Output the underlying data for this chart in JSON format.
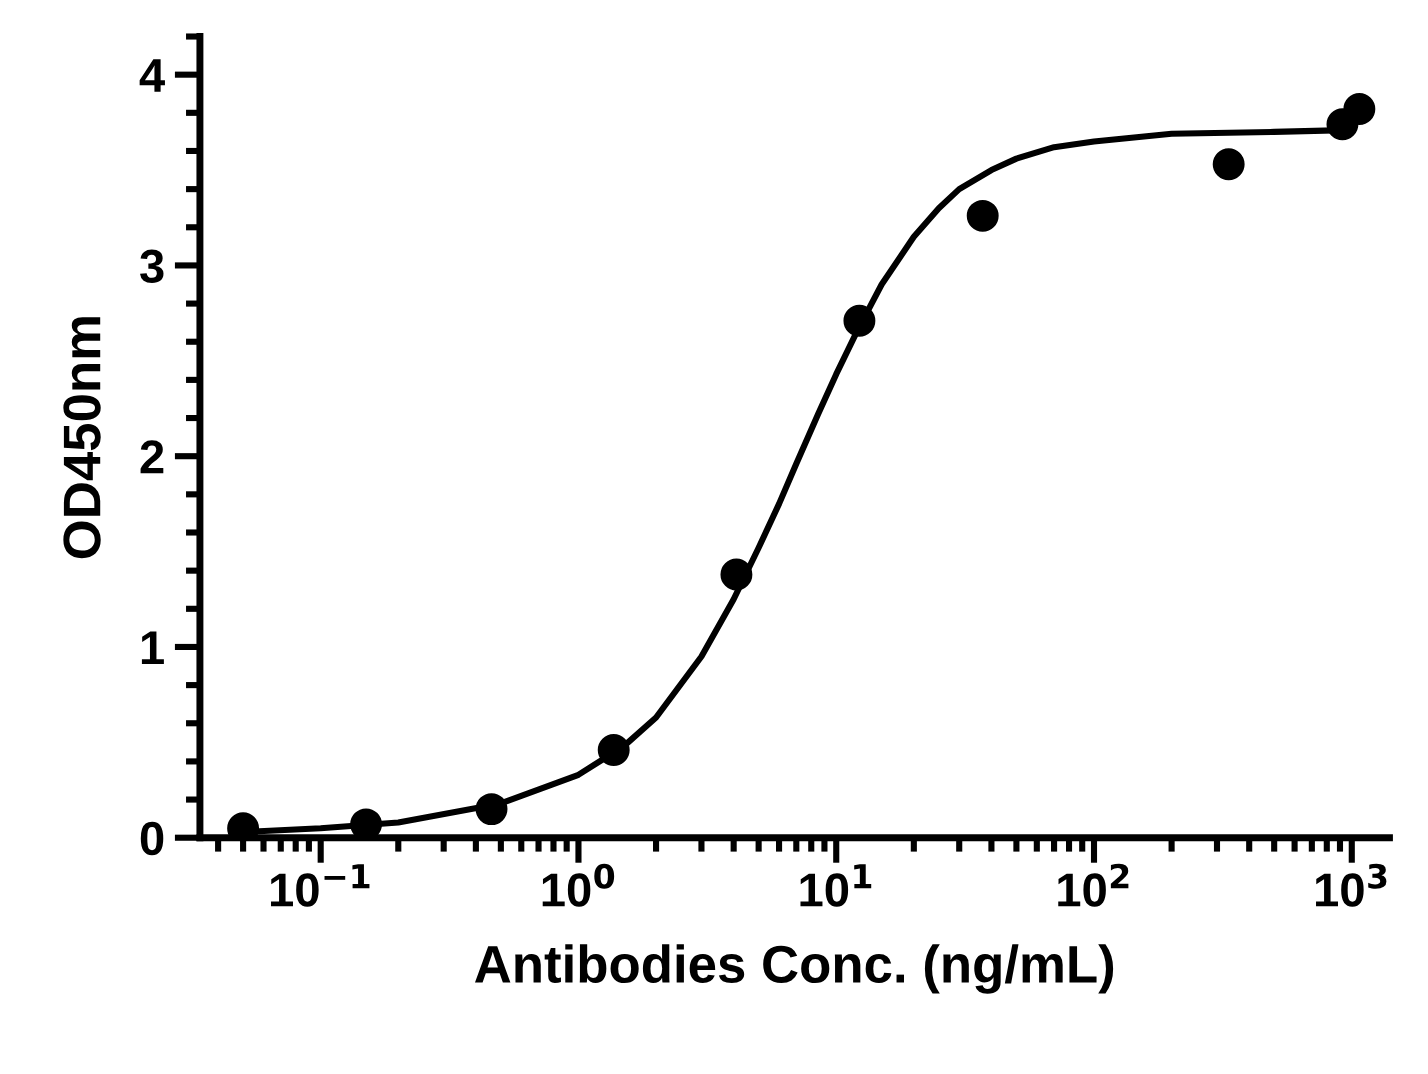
{
  "chart_data": {
    "type": "scatter",
    "xlabel": "Antibodies Conc. (ng/mL)",
    "ylabel": "OD450nm",
    "log": "x",
    "xlim": [
      0.034,
      1400
    ],
    "xticks": [
      {
        "value": 0.1,
        "label": "10$^{−1}$"
      },
      {
        "value": 1,
        "label": "10$^{0}$"
      },
      {
        "value": 10,
        "label": "10$^{1}$"
      },
      {
        "value": 100,
        "label": "10$^{2}$"
      },
      {
        "value": 1000,
        "label": "10$^{3}$"
      }
    ],
    "ylim": [
      0,
      4.2
    ],
    "yticks": [
      0,
      1,
      2,
      3,
      4
    ],
    "grid": false,
    "legend": false,
    "series": [
      {
        "marker": "circle",
        "color": "#000000",
        "x": [
          0.05,
          0.15,
          0.46,
          1.37,
          4.1,
          12.3,
          37,
          333,
          920,
          1070
        ],
        "values": [
          0.05,
          0.07,
          0.15,
          0.46,
          1.38,
          2.71,
          3.26,
          3.53,
          3.74,
          3.82
        ]
      },
      {
        "type": "line",
        "marker": "none",
        "color": "#000000",
        "line_style": "solid",
        "x": [
          0.05,
          0.1,
          0.2,
          0.5,
          1,
          1.5,
          2,
          3,
          4,
          5,
          6,
          7,
          8.5,
          10,
          12,
          15,
          20,
          25,
          30,
          40,
          50,
          70,
          100,
          200,
          500,
          1000
        ],
        "values": [
          0.03,
          0.05,
          0.08,
          0.18,
          0.33,
          0.48,
          0.63,
          0.95,
          1.25,
          1.52,
          1.75,
          1.96,
          2.22,
          2.43,
          2.65,
          2.9,
          3.15,
          3.3,
          3.4,
          3.5,
          3.56,
          3.62,
          3.65,
          3.69,
          3.7,
          3.71
        ]
      }
    ]
  }
}
